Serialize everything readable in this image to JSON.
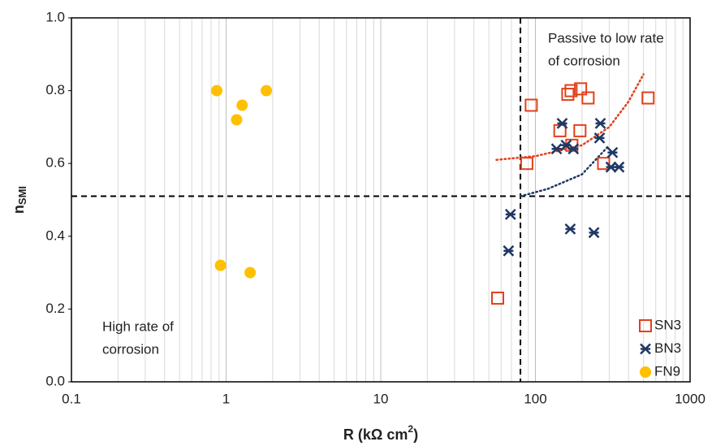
{
  "chart_data": {
    "type": "scatter",
    "xlabel": [
      "R (kΩ cm",
      "2",
      ")"
    ],
    "ylabel": [
      "n",
      "SMI"
    ],
    "xlog": true,
    "xlim": [
      0.1,
      1000
    ],
    "xticks": [
      0.1,
      1,
      10,
      100,
      1000
    ],
    "ylim": [
      0,
      1
    ],
    "yticks": [
      {
        "value": 0,
        "label": "0.0"
      },
      0.2,
      0.4,
      0.6,
      0.8,
      {
        "value": 1,
        "label": "1.0"
      }
    ],
    "grid": "x-major-minor",
    "legend": "lower right",
    "series": [
      {
        "name": "SN3",
        "color": "#e2401c",
        "marker": "square",
        "x": [
          57,
          88,
          94,
          144,
          162,
          170,
          172,
          194,
          196,
          219,
          276,
          535
        ],
        "values": [
          0.23,
          0.6,
          0.76,
          0.69,
          0.79,
          0.8,
          0.65,
          0.69,
          0.805,
          0.78,
          0.6,
          0.78
        ]
      },
      {
        "name": "BN3",
        "color": "#1f3864",
        "marker": "asterisk",
        "x": [
          69,
          67,
          149,
          137,
          158,
          176,
          168,
          239,
          260,
          263,
          308,
          315,
          347
        ],
        "values": [
          0.46,
          0.36,
          0.71,
          0.64,
          0.65,
          0.64,
          0.42,
          0.41,
          0.67,
          0.71,
          0.59,
          0.63,
          0.59
        ]
      },
      {
        "name": "FN9",
        "color": "#ffc000",
        "marker": "circle",
        "x": [
          0.87,
          1.27,
          1.82,
          1.17,
          0.92,
          1.43
        ],
        "values": [
          0.8,
          0.76,
          0.8,
          0.72,
          0.32,
          0.3
        ]
      }
    ],
    "trendlines": [
      {
        "color": "#e2401c",
        "x": [
          56,
          100,
          200,
          300,
          400,
          500
        ],
        "values": [
          0.61,
          0.62,
          0.65,
          0.7,
          0.77,
          0.845
        ]
      },
      {
        "color": "#1f3864",
        "x": [
          80,
          120,
          200,
          300
        ],
        "values": [
          0.51,
          0.53,
          0.57,
          0.65
        ]
      }
    ],
    "vlines": [
      80
    ],
    "hlines": [
      0.51
    ],
    "annotations": [
      {
        "lines": [
          "Passive to low rate",
          "of corrosion"
        ]
      },
      {
        "lines": [
          "High rate of",
          "corrosion"
        ]
      }
    ]
  }
}
